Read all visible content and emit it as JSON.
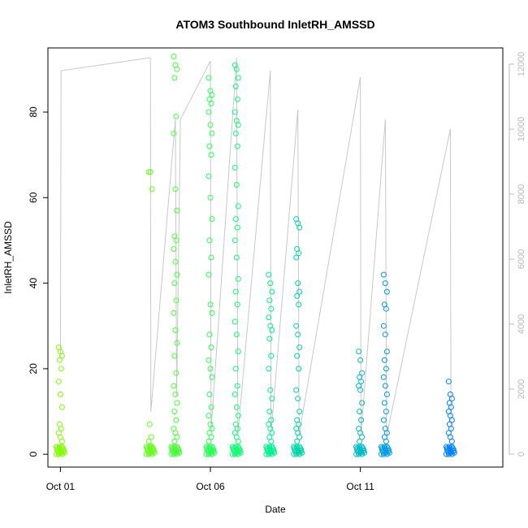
{
  "chart_data": {
    "type": "scatter",
    "title": "ATOM3 Southbound InletRH_AMSSD",
    "xlabel": "Date",
    "ylabel": "InletRH_AMSSD",
    "x_range_days": [
      "2016-09-30T14:00",
      "2016-10-15T18:00"
    ],
    "ylim": [
      -3,
      95
    ],
    "y2lim": [
      -400,
      12500
    ],
    "x_ticks": [
      {
        "date": "2016-10-01",
        "label": "Oct 01"
      },
      {
        "date": "2016-10-06",
        "label": "Oct 06"
      },
      {
        "date": "2016-10-11",
        "label": "Oct 11"
      }
    ],
    "y_ticks": [
      0,
      20,
      40,
      60,
      80
    ],
    "y2_ticks": [
      0,
      2000,
      4000,
      6000,
      8000,
      10000,
      12000
    ],
    "grid": false,
    "legend": "none",
    "colors": {
      "points_start": "#80ff00",
      "points_mid": "#00ff80",
      "points_end": "#0080ff",
      "secondary_line": "#c8c8c8",
      "axis": "#000000",
      "secondary_axis": "#b8b8b8"
    },
    "clusters": [
      {
        "date": "2016-10-01T00:00",
        "high": [
          25,
          24,
          23,
          22,
          20,
          17,
          14,
          11,
          7,
          6,
          5,
          4,
          3
        ]
      },
      {
        "date": "2016-10-04T00:00",
        "high": [
          66,
          66,
          62,
          7,
          4,
          3,
          2
        ]
      },
      {
        "date": "2016-10-04T20:00",
        "high": [
          93,
          91,
          90,
          88,
          79,
          75,
          62,
          57,
          51,
          50,
          48,
          45,
          42,
          40,
          36,
          33,
          29,
          26,
          23,
          19,
          16,
          14,
          12,
          10,
          8,
          6,
          5,
          4,
          3
        ]
      },
      {
        "date": "2016-10-06T00:00",
        "high": [
          88,
          85,
          84,
          83,
          82,
          80,
          77,
          75,
          72,
          70,
          65,
          60,
          55,
          50,
          46,
          42,
          35,
          33,
          28,
          25,
          22,
          20,
          18,
          14,
          11,
          9,
          7,
          6,
          5,
          4,
          3
        ]
      },
      {
        "date": "2016-10-06T21:00",
        "high": [
          91,
          90,
          88,
          86,
          83,
          80,
          78,
          77,
          75,
          72,
          67,
          63,
          58,
          55,
          53,
          50,
          46,
          41,
          38,
          35,
          31,
          28,
          24,
          20,
          16,
          14,
          11,
          9,
          7,
          6,
          5,
          4,
          3
        ]
      },
      {
        "date": "2016-10-08T00:00",
        "high": [
          42,
          40,
          38,
          36,
          34,
          32,
          30,
          29,
          27,
          23,
          20,
          15,
          13,
          10,
          8,
          7,
          6,
          5,
          4,
          3
        ]
      },
      {
        "date": "2016-10-08T22:00",
        "high": [
          55,
          54,
          53,
          48,
          47,
          46,
          40,
          38,
          37,
          35,
          30,
          28,
          25,
          23,
          20,
          15,
          13,
          10,
          8,
          7,
          6,
          5,
          4,
          3
        ]
      },
      {
        "date": "2016-10-11T00:00",
        "high": [
          24,
          22,
          19,
          18,
          17,
          16,
          15,
          12,
          10,
          8,
          6,
          5,
          4,
          3
        ]
      },
      {
        "date": "2016-10-11T20:00",
        "high": [
          42,
          40,
          38,
          35,
          34,
          30,
          28,
          24,
          22,
          20,
          18,
          16,
          14,
          12,
          10,
          8,
          6,
          5,
          4,
          3
        ]
      },
      {
        "date": "2016-10-14T00:00",
        "high": [
          17,
          14,
          13,
          12,
          11,
          10,
          9,
          8,
          7,
          6,
          5,
          4,
          3
        ]
      }
    ],
    "secondary_series": [
      {
        "date": "2016-10-01T00:00",
        "y2": 3000
      },
      {
        "date": "2016-10-01T00:30",
        "y2": 11800
      },
      {
        "date": "2016-10-04T00:00",
        "y2": 12200
      },
      {
        "date": "2016-10-04T00:20",
        "y2": 1300
      },
      {
        "date": "2016-10-04T20:00",
        "y2": 10300
      },
      {
        "date": "2016-10-04T21:00",
        "y2": 1800
      },
      {
        "date": "2016-10-05T00:00",
        "y2": 10300
      },
      {
        "date": "2016-10-06T00:00",
        "y2": 12100
      },
      {
        "date": "2016-10-06T00:30",
        "y2": 700
      },
      {
        "date": "2016-10-06T21:00",
        "y2": 12200
      },
      {
        "date": "2016-10-06T22:00",
        "y2": 600
      },
      {
        "date": "2016-10-08T00:00",
        "y2": 11800
      },
      {
        "date": "2016-10-08T00:30",
        "y2": 600
      },
      {
        "date": "2016-10-08T22:00",
        "y2": 10600
      },
      {
        "date": "2016-10-08T23:00",
        "y2": 600
      },
      {
        "date": "2016-10-11T00:00",
        "y2": 11600
      },
      {
        "date": "2016-10-11T00:30",
        "y2": 600
      },
      {
        "date": "2016-10-11T20:00",
        "y2": 10300
      },
      {
        "date": "2016-10-11T21:00",
        "y2": 550
      },
      {
        "date": "2016-10-14T00:00",
        "y2": 10000
      },
      {
        "date": "2016-10-14T00:30",
        "y2": 450
      }
    ]
  }
}
